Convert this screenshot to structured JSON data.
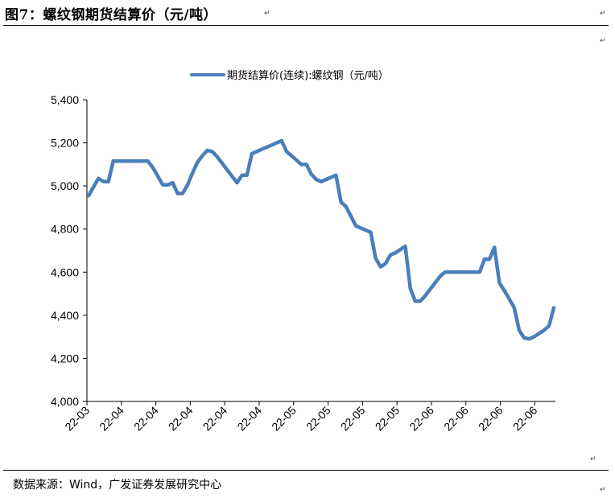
{
  "figure": {
    "title": "图7：螺纹钢期货结算价（元/吨）",
    "source": "数据来源：Wind，广发证券发展研究中心",
    "para_mark": "↵"
  },
  "chart_data": {
    "type": "line",
    "series": [
      {
        "name": "期货结算价(连续):螺纹钢（元/吨）",
        "color": "#4a7ebb",
        "values": [
          4955,
          4995,
          5035,
          5020,
          5020,
          5115,
          5115,
          5115,
          5115,
          5115,
          5115,
          5115,
          5115,
          5085,
          5045,
          5005,
          5005,
          5015,
          4965,
          4965,
          5005,
          5060,
          5110,
          5140,
          5165,
          5160,
          5135,
          5105,
          5075,
          5045,
          5015,
          5050,
          5050,
          5150,
          5160,
          5170,
          5180,
          5190,
          5200,
          5210,
          5160,
          5140,
          5120,
          5100,
          5100,
          5055,
          5030,
          5020,
          5030,
          5040,
          5050,
          4925,
          4905,
          4860,
          4815,
          4805,
          4795,
          4785,
          4665,
          4625,
          4640,
          4680,
          4690,
          4705,
          4720,
          4525,
          4465,
          4465,
          4490,
          4520,
          4550,
          4580,
          4600,
          4600,
          4600,
          4600,
          4600,
          4600,
          4600,
          4600,
          4660,
          4660,
          4715,
          4550,
          4515,
          4475,
          4435,
          4330,
          4295,
          4290,
          4300,
          4315,
          4330,
          4350,
          4435
        ]
      }
    ],
    "x_tick_labels": [
      "22-03",
      "22-04",
      "22-04",
      "22-04",
      "22-04",
      "22-04",
      "22-05",
      "22-05",
      "22-05",
      "22-05",
      "22-06",
      "22-06",
      "22-06",
      "22-06"
    ],
    "y_tick_labels": [
      "4,000",
      "4,200",
      "4,400",
      "4,600",
      "4,800",
      "5,000",
      "5,200",
      "5,400"
    ],
    "ylim": [
      4000,
      5400
    ],
    "y_step": 200,
    "grid": false,
    "legend_position": "top-center"
  }
}
